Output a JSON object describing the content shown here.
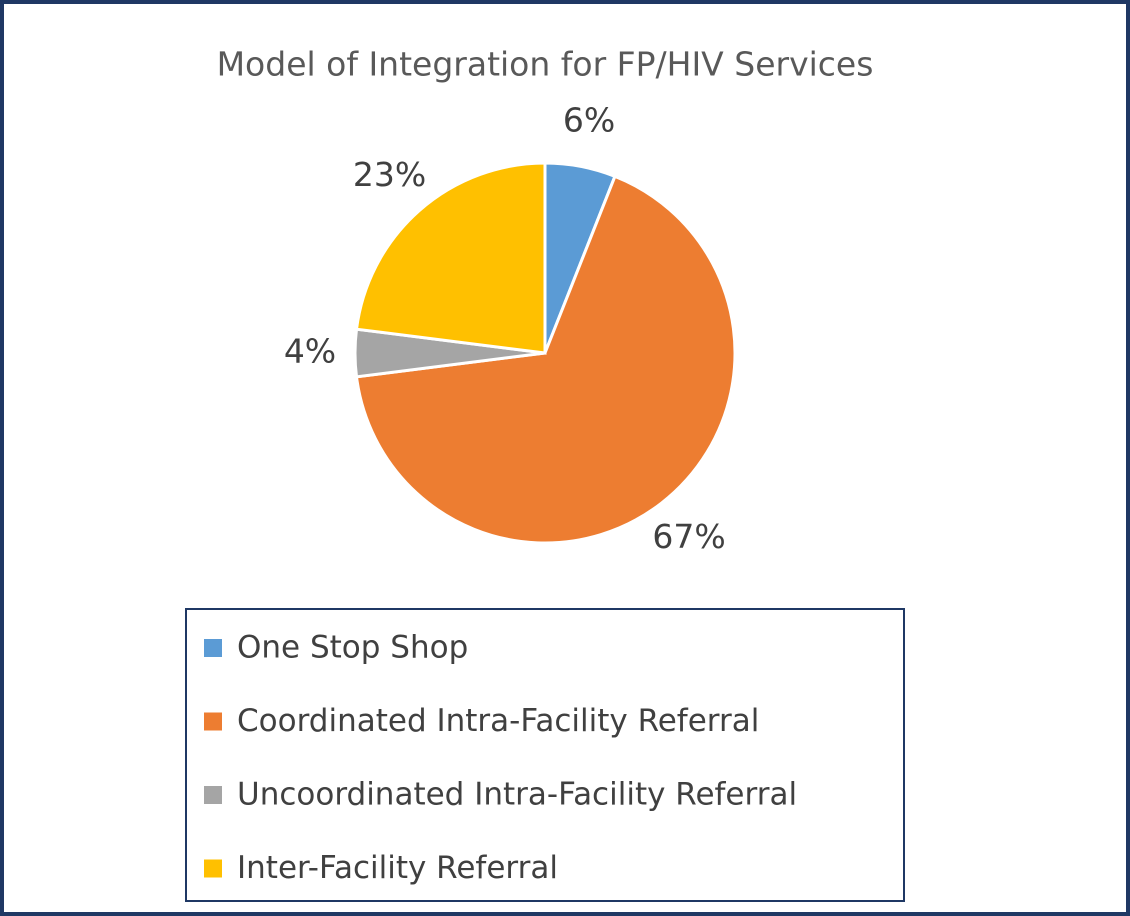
{
  "chart_data": {
    "type": "pie",
    "title": "Model of Integration for FP/HIV Services",
    "categories": [
      "One Stop Shop",
      "Coordinated Intra-Facility Referral",
      "Uncoordinated Intra-Facility Referral",
      "Inter-Facility Referral"
    ],
    "values": [
      6,
      67,
      4,
      23
    ],
    "value_labels": [
      "6%",
      "67%",
      "4%",
      "23%"
    ],
    "colors": [
      "#5b9bd5",
      "#ed7d31",
      "#a5a5a5",
      "#ffc000"
    ],
    "legend": "bottom"
  }
}
